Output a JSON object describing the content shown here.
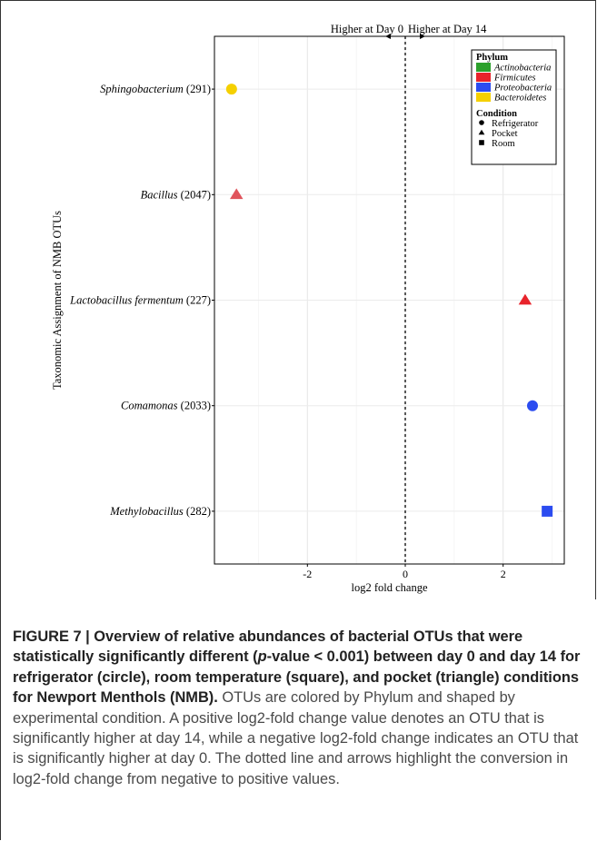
{
  "chart_data": {
    "type": "scatter",
    "xlabel": "log2 fold change",
    "ylabel": "Taxonomic Assignment of NMB OTUs",
    "xlim": [
      -3.9,
      3.25
    ],
    "xticks": [
      -2,
      0,
      2
    ],
    "tick_labels": [
      "-2",
      "0",
      "2"
    ],
    "zero_line": "dashed",
    "grid": true,
    "direction_labels": {
      "left": "Higher at Day 0",
      "right": "Higher at Day 14"
    },
    "categories": [
      {
        "genus": "Sphingobacterium",
        "suffix": "(291)",
        "label": "Sphingobacterium (291)"
      },
      {
        "genus": "Bacillus",
        "suffix": "(2047)",
        "label": "Bacillus (2047)"
      },
      {
        "genus": "Lactobacillus fermentum",
        "suffix": "(227)",
        "label": "Lactobacillus fermentum (227)"
      },
      {
        "genus": "Comamonas",
        "suffix": "(2033)",
        "label": "Comamonas (2033)"
      },
      {
        "genus": "Methylobacillus",
        "suffix": "(282)",
        "label": "Methylobacillus (282)"
      }
    ],
    "points": [
      {
        "category": "Sphingobacterium (291)",
        "x": -3.55,
        "phylum": "Bacteroidetes",
        "condition": "Refrigerator"
      },
      {
        "category": "Bacillus (2047)",
        "x": -3.45,
        "phylum": "Firmicutes",
        "condition": "Pocket"
      },
      {
        "category": "Lactobacillus fermentum (227)",
        "x": 2.45,
        "phylum": "Firmicutes",
        "condition": "Pocket"
      },
      {
        "category": "Comamonas (2033)",
        "x": 2.6,
        "phylum": "Proteobacteria",
        "condition": "Refrigerator"
      },
      {
        "category": "Methylobacillus (282)",
        "x": 2.9,
        "phylum": "Proteobacteria",
        "condition": "Room"
      }
    ],
    "legend": {
      "placement": "top-right",
      "phylum_title": "Phylum",
      "phylum": [
        {
          "name": "Actinobacteria",
          "color": "#2ca02c"
        },
        {
          "name": "Firmicutes",
          "color": "#e8232b"
        },
        {
          "name": "Proteobacteria",
          "color": "#2b4cf0"
        },
        {
          "name": "Bacteroidetes",
          "color": "#f5d000"
        }
      ],
      "condition_title": "Condition",
      "condition": [
        {
          "name": "Refrigerator",
          "shape": "circle"
        },
        {
          "name": "Pocket",
          "shape": "triangle"
        },
        {
          "name": "Room",
          "shape": "square"
        }
      ]
    }
  },
  "caption": {
    "fig_label": "FIGURE 7 | ",
    "bold_1": "Overview of relative abundances of bacterial OTUs that were statistically significantly different (",
    "bold_italic": "p",
    "bold_2": "-value < 0.001) between day 0 and day 14 for refrigerator (circle), room temperature (square), and pocket (triangle) conditions for Newport Menthols (NMB).",
    "body": " OTUs are colored by Phylum and shaped by experimental condition. A positive log2-fold change value denotes an OTU that is significantly higher at day 14, while a negative log2-fold change indicates an OTU that is significantly higher at day 0. The dotted line and arrows highlight the conversion in log2-fold change from negative to positive values."
  }
}
